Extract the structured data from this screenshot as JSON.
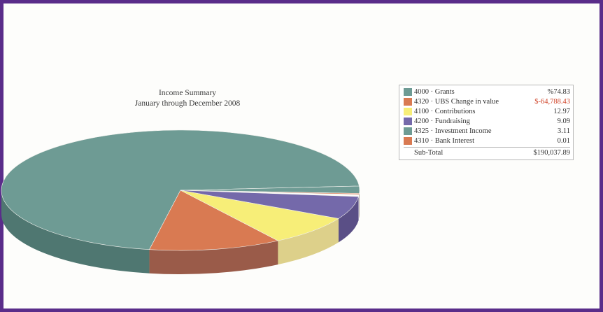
{
  "chart_data": {
    "type": "pie",
    "title": "Income Summary",
    "subtitle": "January through December 2008",
    "slices": [
      {
        "label": "4000 · Grants",
        "value": 74.83,
        "value_text": "%74.83",
        "color": "#6e9b94",
        "side_color": "#4f7771"
      },
      {
        "label": "4320 · UBS Change in value",
        "value": -64788.43,
        "value_text": "$-64,788.43",
        "color": "#d97a52",
        "side_color": "#9a5b49",
        "negative": true
      },
      {
        "label": "4100 · Contributions",
        "value": 12.97,
        "value_text": "12.97",
        "color": "#f7ee78",
        "side_color": "#ddd08a"
      },
      {
        "label": "4200 · Fundraising",
        "value": 9.09,
        "value_text": "9.09",
        "color": "#7469aa",
        "side_color": "#5a4f86"
      },
      {
        "label": "4325 · Investment Income",
        "value": 3.11,
        "value_text": "3.11",
        "color": "#6e9b94",
        "side_color": "#4f7771"
      },
      {
        "label": "4310 · Bank Interest",
        "value": 0.01,
        "value_text": "0.01",
        "color": "#d97a52",
        "side_color": "#9a5b49"
      }
    ],
    "subtotal": {
      "label": "Sub-Total",
      "value_text": "$190,037.89"
    }
  },
  "pie_angles": [
    {
      "start": 100,
      "end": 356
    },
    {
      "start": 57,
      "end": 100
    },
    {
      "start": 28,
      "end": 57
    },
    {
      "start": 6,
      "end": 28
    },
    {
      "start": 356,
      "end": 363
    },
    {
      "start": 363,
      "end": 364
    }
  ]
}
